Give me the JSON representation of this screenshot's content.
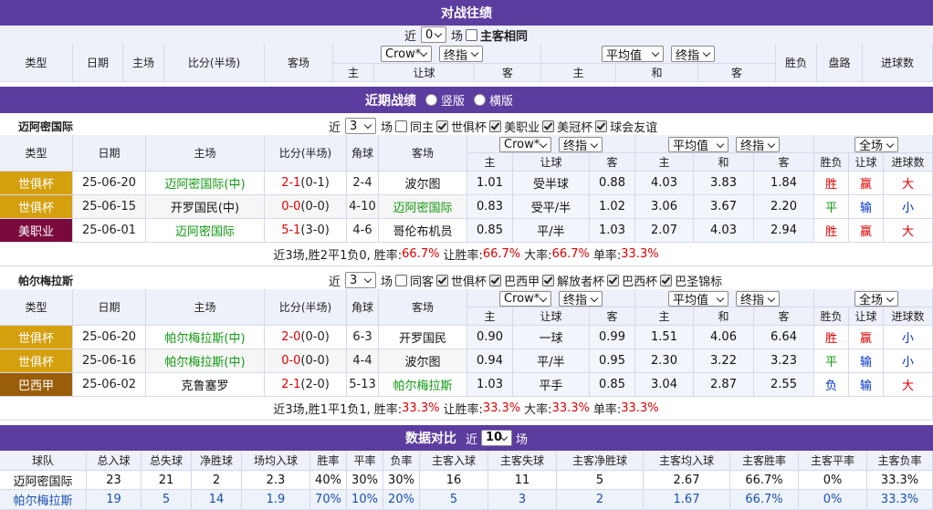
{
  "h2h": {
    "title": "对战往绩",
    "filter": {
      "near": "近",
      "count": "0",
      "unit": "场",
      "same_venue": "主客相同"
    },
    "columns": {
      "type": "类型",
      "date": "日期",
      "home": "主场",
      "score": "比分(半场)",
      "away": "客场",
      "result": "胜负",
      "handicap": "盘路",
      "goals": "进球数"
    },
    "selects": [
      "Crow*",
      "终指",
      "平均值",
      "终指"
    ],
    "sub_columns": [
      "主",
      "让球",
      "客",
      "主",
      "和",
      "客"
    ]
  },
  "recent": {
    "title": "近期战绩",
    "views": [
      "竖版",
      "横版"
    ],
    "teams": [
      {
        "name": "迈阿密国际",
        "filter": {
          "near": "近",
          "count": "3",
          "unit": "场",
          "options": [
            {
              "label": "同主",
              "checked": false
            },
            {
              "label": "世俱杯",
              "checked": true
            },
            {
              "label": "美职业",
              "checked": true
            },
            {
              "label": "美冠杯",
              "checked": true
            },
            {
              "label": "球会友谊",
              "checked": true
            }
          ]
        },
        "columns": {
          "type": "类型",
          "date": "日期",
          "home": "主场",
          "score": "比分(半场)",
          "corner": "角球",
          "away": "客场"
        },
        "selects": [
          "Crow*",
          "终指",
          "平均值",
          "终指",
          "全场"
        ],
        "sub_columns": [
          "主",
          "让球",
          "客",
          "主",
          "和",
          "客",
          "胜负",
          "让球",
          "进球数"
        ],
        "rows": [
          {
            "league": {
              "text": "世俱杯",
              "color": "#d4a00e"
            },
            "date": "25-06-20",
            "home": {
              "text": "迈阿密国际(中)",
              "color": "#119911"
            },
            "score": "2-1",
            "half": "(0-1)",
            "corner": "2-4",
            "away": "波尔图",
            "odds_home": "1.01",
            "handicap": "受半球",
            "odds_away": "0.88",
            "avg_home": "4.03",
            "avg_draw": "3.83",
            "avg_away": "1.84",
            "result": {
              "text": "胜",
              "color": "#e00000"
            },
            "handicap_result": {
              "text": "赢",
              "color": "#e00000"
            },
            "goals": {
              "text": "大",
              "color": "#e00000"
            }
          },
          {
            "league": {
              "text": "世俱杯",
              "color": "#d4a00e"
            },
            "date": "25-06-15",
            "home": "开罗国民(中)",
            "score": "0-0",
            "half": "(0-0)",
            "corner": "4-10",
            "away": {
              "text": "迈阿密国际",
              "color": "#119911"
            },
            "odds_home": "0.83",
            "handicap": "受平/半",
            "odds_away": "1.02",
            "avg_home": "3.06",
            "avg_draw": "3.67",
            "avg_away": "2.20",
            "result": {
              "text": "平",
              "color": "#119911"
            },
            "handicap_result": {
              "text": "输",
              "color": "#0033cc"
            },
            "goals": {
              "text": "小",
              "color": "#0033cc"
            }
          },
          {
            "league": {
              "text": "美职业",
              "color": "#7a0a3c"
            },
            "date": "25-06-01",
            "home": {
              "text": "迈阿密国际",
              "color": "#119911"
            },
            "score": "5-1",
            "half": "(3-0)",
            "corner": "4-6",
            "away": "哥伦布机员",
            "odds_home": "0.85",
            "handicap": "平/半",
            "odds_away": "1.03",
            "avg_home": "2.07",
            "avg_draw": "4.03",
            "avg_away": "2.94",
            "result": {
              "text": "胜",
              "color": "#e00000"
            },
            "handicap_result": {
              "text": "赢",
              "color": "#e00000"
            },
            "goals": {
              "text": "大",
              "color": "#e00000"
            }
          }
        ],
        "summary": {
          "intro": "近3场,胜2平1负0,",
          "stats": [
            {
              "label": "胜率:",
              "value": "66.7%"
            },
            {
              "label": "让胜率:",
              "value": "66.7%"
            },
            {
              "label": "大率:",
              "value": "66.7%"
            },
            {
              "label": "单率:",
              "value": "33.3%"
            }
          ]
        }
      },
      {
        "name": "帕尔梅拉斯",
        "filter": {
          "near": "近",
          "count": "3",
          "unit": "场",
          "options": [
            {
              "label": "同客",
              "checked": false
            },
            {
              "label": "世俱杯",
              "checked": true
            },
            {
              "label": "巴西甲",
              "checked": true
            },
            {
              "label": "解放者杯",
              "checked": true
            },
            {
              "label": "巴西杯",
              "checked": true
            },
            {
              "label": "巴圣锦标",
              "checked": true
            }
          ]
        },
        "columns": {
          "type": "类型",
          "date": "日期",
          "home": "主场",
          "score": "比分(半场)",
          "corner": "角球",
          "away": "客场"
        },
        "selects": [
          "Crow*",
          "终指",
          "平均值",
          "终指",
          "全场"
        ],
        "sub_columns": [
          "主",
          "让球",
          "客",
          "主",
          "和",
          "客",
          "胜负",
          "让球",
          "进球数"
        ],
        "rows": [
          {
            "league": {
              "text": "世俱杯",
              "color": "#d4a00e"
            },
            "date": "25-06-20",
            "home": {
              "text": "帕尔梅拉斯(中)",
              "color": "#119911"
            },
            "score": "2-0",
            "half": "(0-0)",
            "corner": "6-3",
            "away": "开罗国民",
            "odds_home": "0.90",
            "handicap": "一球",
            "odds_away": "0.99",
            "avg_home": "1.51",
            "avg_draw": "4.06",
            "avg_away": "6.64",
            "result": {
              "text": "胜",
              "color": "#e00000"
            },
            "handicap_result": {
              "text": "赢",
              "color": "#e00000"
            },
            "goals": {
              "text": "小",
              "color": "#0033cc"
            }
          },
          {
            "league": {
              "text": "世俱杯",
              "color": "#d4a00e"
            },
            "date": "25-06-16",
            "home": {
              "text": "帕尔梅拉斯(中)",
              "color": "#119911"
            },
            "score": "0-0",
            "half": "(0-0)",
            "corner": "4-4",
            "away": "波尔图",
            "odds_home": "0.94",
            "handicap": "平/半",
            "odds_away": "0.95",
            "avg_home": "2.30",
            "avg_draw": "3.22",
            "avg_away": "3.23",
            "result": {
              "text": "平",
              "color": "#119911"
            },
            "handicap_result": {
              "text": "输",
              "color": "#0033cc"
            },
            "goals": {
              "text": "小",
              "color": "#0033cc"
            }
          },
          {
            "league": {
              "text": "巴西甲",
              "color": "#9a5e0a"
            },
            "date": "25-06-02",
            "home": "克鲁塞罗",
            "score": "2-1",
            "half": "(2-0)",
            "corner": "5-13",
            "away": {
              "text": "帕尔梅拉斯",
              "color": "#119911"
            },
            "odds_home": "1.03",
            "handicap": "平手",
            "odds_away": "0.85",
            "avg_home": "3.04",
            "avg_draw": "2.87",
            "avg_away": "2.55",
            "result": {
              "text": "负",
              "color": "#0033cc"
            },
            "handicap_result": {
              "text": "输",
              "color": "#0033cc"
            },
            "goals": {
              "text": "大",
              "color": "#e00000"
            }
          }
        ],
        "summary": {
          "intro": "近3场,胜1平1负1,",
          "stats": [
            {
              "label": "胜率:",
              "value": "33.3%"
            },
            {
              "label": "让胜率:",
              "value": "33.3%"
            },
            {
              "label": "大率:",
              "value": "33.3%"
            },
            {
              "label": "单率:",
              "value": "33.3%"
            }
          ]
        }
      }
    ]
  },
  "comparison": {
    "title": "数据对比",
    "filter": {
      "near": "近",
      "count": "10",
      "unit": "场"
    },
    "columns": [
      "球队",
      "总入球",
      "总失球",
      "净胜球",
      "场均入球",
      "胜率",
      "平率",
      "负率",
      "主客入球",
      "主客失球",
      "主客净胜球",
      "主客均入球",
      "主客胜率",
      "主客平率",
      "主客负率"
    ],
    "rows": [
      {
        "color": "#111111",
        "background": "#ffffff",
        "cells": [
          "迈阿密国际",
          "23",
          "21",
          "2",
          "2.3",
          "40%",
          "30%",
          "30%",
          "16",
          "11",
          "5",
          "2.67",
          "66.7%",
          "0%",
          "33.3%"
        ]
      },
      {
        "color": "#1a4fb0",
        "background": "#eef3fb",
        "cells": [
          "帕尔梅拉斯",
          "19",
          "5",
          "14",
          "1.9",
          "70%",
          "10%",
          "20%",
          "5",
          "3",
          "2",
          "1.67",
          "66.7%",
          "0%",
          "33.3%"
        ]
      }
    ]
  }
}
